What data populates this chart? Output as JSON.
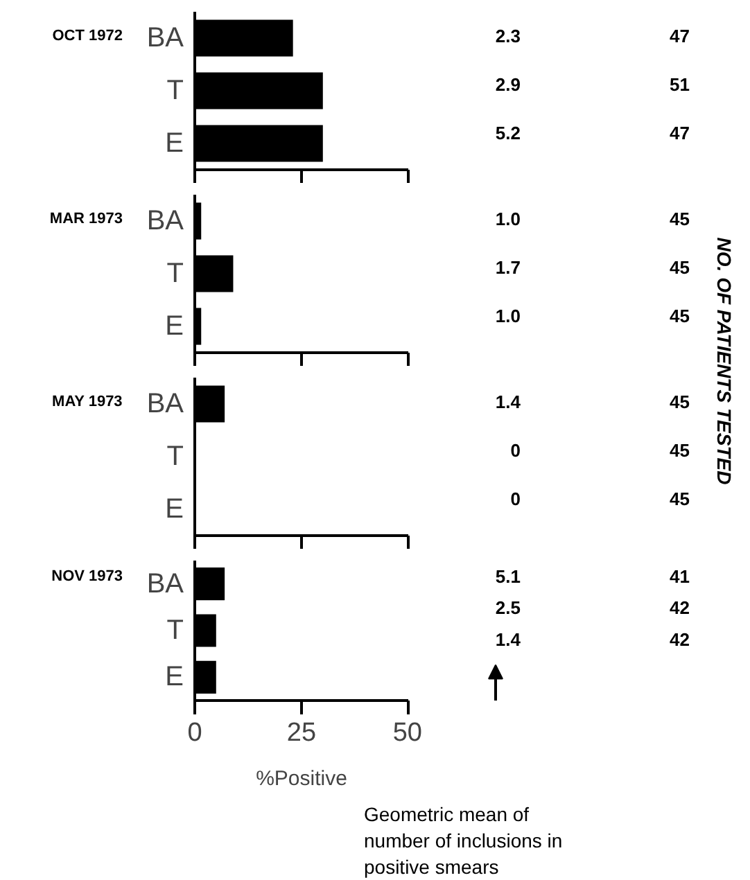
{
  "chart_data": [
    {
      "type": "bar",
      "orientation": "horizontal",
      "title": "OCT 1972",
      "categories": [
        "BA",
        "T",
        "E"
      ],
      "values": [
        23,
        30,
        30
      ],
      "color": "#000000",
      "xlim": [
        0,
        50
      ],
      "xticks": [
        0,
        25,
        50
      ],
      "tick_labels": "y",
      "grid": false,
      "y2label": "NO. OF PATIENTS TESTED",
      "annotations": [
        "2.3",
        "2.9",
        "5.2",
        "47",
        "51",
        "47"
      ]
    },
    {
      "type": "bar",
      "orientation": "horizontal",
      "title": "MAR 1973",
      "categories": [
        "BA",
        "T",
        "E"
      ],
      "values": [
        1.5,
        9,
        1.5
      ],
      "color": "#000000",
      "xlim": [
        0,
        50
      ],
      "xticks": [
        0,
        25,
        50
      ],
      "tick_labels": "y",
      "grid": false,
      "annotations": [
        "1.0",
        "1.7",
        "1.0",
        "45",
        "45",
        "45"
      ]
    },
    {
      "type": "bar",
      "orientation": "horizontal",
      "title": "MAY 1973",
      "categories": [
        "BA",
        "T",
        "E"
      ],
      "values": [
        7,
        0,
        0
      ],
      "color": "#000000",
      "xlim": [
        0,
        50
      ],
      "xticks": [
        0,
        25,
        50
      ],
      "tick_labels": "y",
      "grid": false,
      "annotations": [
        "1.4",
        "0",
        "0",
        "45",
        "45",
        "45"
      ]
    },
    {
      "type": "bar",
      "orientation": "horizontal",
      "title": "NOV 1973",
      "categories": [
        "BA",
        "T",
        "E"
      ],
      "values": [
        7,
        5,
        5
      ],
      "color": "#000000",
      "xlim": [
        0,
        50
      ],
      "xticks": [
        0,
        25,
        50
      ],
      "xlabel": "%Positive",
      "grid": false,
      "annotations": [
        "5.1",
        "2.5",
        "1.4",
        "41",
        "42",
        "42",
        "Geometric mean of\nnumber of inclusions in\npositive smears"
      ]
    }
  ]
}
